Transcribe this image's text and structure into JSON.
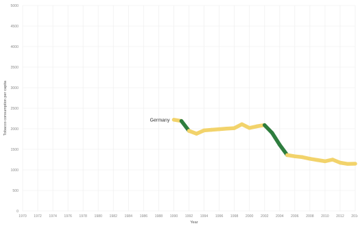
{
  "chart_data": {
    "type": "line",
    "title": "",
    "xlabel": "Year",
    "ylabel": "Tobacco consumption per capita",
    "xlim": [
      1970,
      2014
    ],
    "ylim": [
      0,
      5000
    ],
    "x_ticks": [
      1970,
      1972,
      1974,
      1976,
      1978,
      1980,
      1982,
      1984,
      1986,
      1988,
      1990,
      1992,
      1994,
      1996,
      1998,
      2000,
      2002,
      2004,
      2006,
      2008,
      2010,
      2012,
      2014
    ],
    "y_ticks": [
      0,
      500,
      1000,
      1500,
      2000,
      2500,
      3000,
      3500,
      4000,
      4500,
      5000
    ],
    "grid": true,
    "series": [
      {
        "name": "Germany",
        "colors": {
          "high_change": "#2e7d3e",
          "low_change": "#f2d36b"
        },
        "x": [
          1990,
          1991,
          1992,
          1993,
          1994,
          1995,
          1996,
          1997,
          1998,
          1999,
          2000,
          2001,
          2002,
          2003,
          2004,
          2005,
          2006,
          2007,
          2008,
          2009,
          2010,
          2011,
          2012,
          2013,
          2014
        ],
        "y": [
          2220,
          2190,
          1950,
          1880,
          1960,
          1975,
          1990,
          2005,
          2015,
          2110,
          2020,
          2060,
          2090,
          1900,
          1610,
          1360,
          1330,
          1310,
          1270,
          1240,
          1210,
          1250,
          1175,
          1145,
          1150
        ]
      }
    ]
  }
}
